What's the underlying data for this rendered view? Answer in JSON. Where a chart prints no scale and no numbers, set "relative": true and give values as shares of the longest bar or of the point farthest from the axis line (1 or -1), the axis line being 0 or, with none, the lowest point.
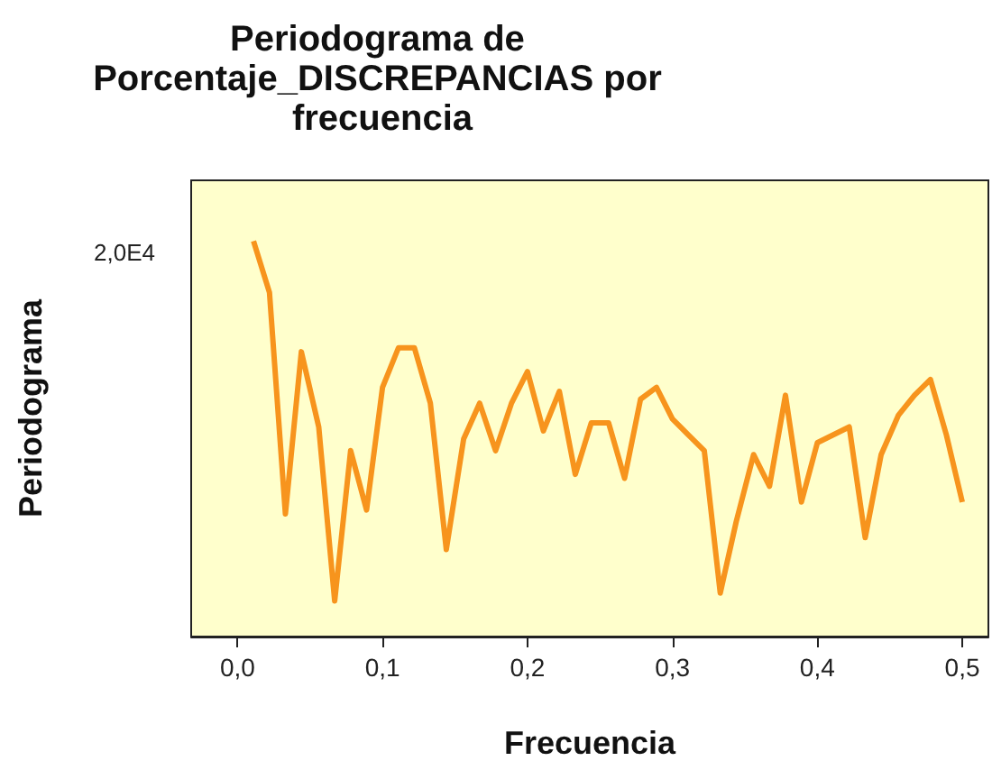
{
  "chart_data": {
    "type": "line",
    "title": "Periodograma de Porcentaje_DISCREPANCIAS por frecuencia",
    "xlabel": "Frecuencia",
    "ylabel": "Periodograma",
    "relative": true,
    "marker": "none",
    "grid": false,
    "annotations": [
      "2,0E4"
    ],
    "xlim": [
      -0.032,
      0.518
    ],
    "xticks": [
      {
        "value": 0,
        "label": "0,0"
      },
      {
        "value": 0.1,
        "label": "0,1"
      },
      {
        "value": 0.2,
        "label": "0,2"
      },
      {
        "value": 0.3,
        "label": "0,3"
      },
      {
        "value": 0.4,
        "label": "0,4"
      },
      {
        "value": 0.5,
        "label": "0,5"
      }
    ],
    "x": [
      0.011,
      0.022,
      0.033,
      0.044,
      0.056,
      0.067,
      0.078,
      0.089,
      0.1,
      0.111,
      0.122,
      0.133,
      0.144,
      0.156,
      0.167,
      0.178,
      0.189,
      0.2,
      0.211,
      0.222,
      0.233,
      0.244,
      0.256,
      0.267,
      0.278,
      0.289,
      0.3,
      0.311,
      0.322,
      0.333,
      0.344,
      0.356,
      0.367,
      0.378,
      0.389,
      0.4,
      0.411,
      0.422,
      0.433,
      0.444,
      0.456,
      0.467,
      0.478,
      0.489,
      0.5
    ],
    "series": [
      {
        "color": "#f7941d",
        "values": [
          1.0,
          0.87,
          0.31,
          0.72,
          0.53,
          0.09,
          0.47,
          0.32,
          0.63,
          0.73,
          0.73,
          0.59,
          0.22,
          0.5,
          0.59,
          0.47,
          0.59,
          0.67,
          0.52,
          0.62,
          0.41,
          0.54,
          0.54,
          0.4,
          0.6,
          0.63,
          0.55,
          0.51,
          0.47,
          0.11,
          0.29,
          0.46,
          0.38,
          0.61,
          0.34,
          0.49,
          0.51,
          0.53,
          0.25,
          0.46,
          0.56,
          0.61,
          0.65,
          0.51,
          0.34
        ]
      }
    ]
  }
}
